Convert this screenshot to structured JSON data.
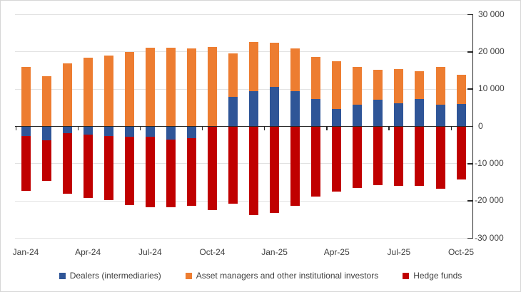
{
  "chart_data": {
    "type": "bar",
    "stacked": true,
    "title": "",
    "categories": [
      "Jan-24",
      "Feb-24",
      "Mar-24",
      "Apr-24",
      "May-24",
      "Jun-24",
      "Jul-24",
      "Aug-24",
      "Sep-24",
      "Oct-24",
      "Nov-24",
      "Dec-24",
      "Jan-25",
      "Feb-25",
      "Mar-25",
      "Apr-25",
      "May-25",
      "Jun-25",
      "Jul-25",
      "Aug-25",
      "Sep-25",
      "Oct-25"
    ],
    "series": [
      {
        "key": "dealers",
        "name": "Dealers (intermediaries)",
        "color": "#2F5597",
        "values": [
          -2600,
          -3700,
          -1900,
          -2200,
          -2500,
          -2800,
          -2800,
          -3600,
          -3100,
          0,
          7900,
          9500,
          10600,
          9500,
          7300,
          4600,
          5800,
          7100,
          6200,
          7300,
          5900,
          6000
        ]
      },
      {
        "key": "asset-managers",
        "name": "Asset managers and other institutional investors",
        "color": "#ED7D31",
        "values": [
          16000,
          13400,
          16900,
          18500,
          19000,
          19900,
          21100,
          21100,
          20900,
          21400,
          11700,
          13200,
          11900,
          11400,
          11400,
          12800,
          10200,
          8000,
          9100,
          7600,
          10100,
          7800
        ]
      },
      {
        "key": "hedge-funds",
        "name": "Hedge funds",
        "color": "#C00000",
        "values": [
          -14700,
          -10900,
          -16100,
          -17000,
          -17300,
          -18300,
          -18900,
          -18000,
          -18300,
          -22400,
          -20800,
          -23700,
          -23200,
          -21300,
          -18900,
          -17500,
          -16500,
          -15800,
          -16000,
          -15900,
          -16800,
          -14300
        ]
      }
    ],
    "y_axis": {
      "side": "right",
      "min": -30000,
      "max": 30000,
      "tick_interval": 10000,
      "ticks": [
        {
          "value": 30000,
          "label": "30 000"
        },
        {
          "value": 20000,
          "label": "20 000"
        },
        {
          "value": 10000,
          "label": "10 000"
        },
        {
          "value": 0,
          "label": "0"
        },
        {
          "value": -10000,
          "label": "-10 000"
        },
        {
          "value": -20000,
          "label": "-20 000"
        },
        {
          "value": -30000,
          "label": "-30 000"
        }
      ]
    },
    "x_axis": {
      "tick_labels": [
        "Jan-24",
        "Apr-24",
        "Jul-24",
        "Oct-24",
        "Jan-25",
        "Apr-25",
        "Jul-25",
        "Oct-25"
      ],
      "tick_label_indices": [
        0,
        3,
        6,
        9,
        12,
        15,
        18,
        21
      ]
    },
    "legend": {
      "position": "bottom"
    },
    "grid": true,
    "colors": {
      "axis": "#262626",
      "gridline": "#e2e2e2",
      "text": "#404040",
      "background": "#ffffff"
    }
  }
}
